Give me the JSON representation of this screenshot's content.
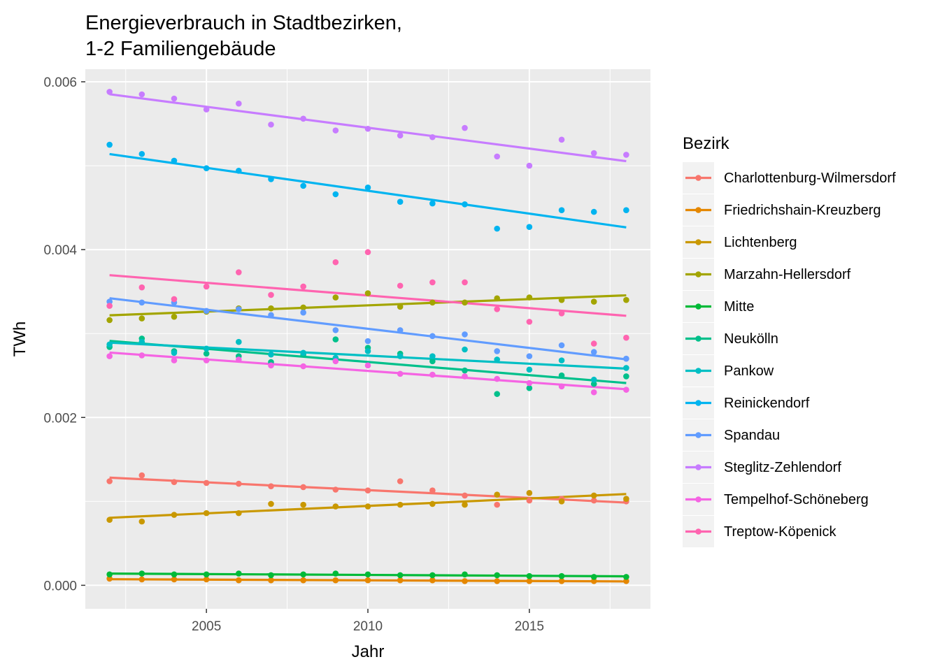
{
  "chart_data": {
    "type": "scatter",
    "title_line1": "Energieverbrauch in Stadtbezirken,",
    "title_line2": "1-2 Familiengebäude",
    "xlabel": "Jahr",
    "ylabel": "TWh",
    "xlim": [
      2001.25,
      2018.75
    ],
    "ylim": [
      -0.00028,
      0.00615
    ],
    "x_ticks": [
      2005,
      2010,
      2015
    ],
    "x_tick_labels": [
      "2005",
      "2010",
      "2015"
    ],
    "y_ticks": [
      0.0,
      0.002,
      0.004,
      0.006
    ],
    "y_tick_labels": [
      "0.000",
      "0.002",
      "0.004",
      "0.006"
    ],
    "grid": true,
    "trend_lines": "linear fit per series",
    "legend_title": "Bezirk",
    "legend_position": "right",
    "x": [
      2002,
      2003,
      2004,
      2005,
      2006,
      2007,
      2008,
      2009,
      2010,
      2011,
      2012,
      2013,
      2014,
      2015,
      2016,
      2017,
      2018
    ],
    "series": [
      {
        "name": "Charlottenburg-Wilmersdorf",
        "color": "#F8766D",
        "values": [
          0.00124,
          0.00131,
          0.00123,
          0.00122,
          0.00121,
          0.00118,
          0.00117,
          0.00114,
          0.00113,
          0.00124,
          0.00113,
          0.00107,
          0.00096,
          0.00101,
          0.00103,
          0.00101,
          0.001
        ]
      },
      {
        "name": "Friedrichshain-Kreuzberg",
        "color": "#E58700",
        "values": [
          8e-05,
          7e-05,
          7e-05,
          7e-05,
          6e-05,
          6e-05,
          6e-05,
          6e-05,
          6e-05,
          6e-05,
          6e-05,
          5e-05,
          5e-05,
          5e-05,
          5e-05,
          5e-05,
          5e-05
        ]
      },
      {
        "name": "Lichtenberg",
        "color": "#C99800",
        "values": [
          0.00078,
          0.00076,
          0.00084,
          0.00086,
          0.00086,
          0.00097,
          0.00096,
          0.00094,
          0.00094,
          0.00096,
          0.00097,
          0.00096,
          0.00108,
          0.0011,
          0.001,
          0.00107,
          0.00103
        ]
      },
      {
        "name": "Marzahn-Hellersdorf",
        "color": "#A3A500",
        "values": [
          0.00316,
          0.00318,
          0.0032,
          0.00326,
          0.0033,
          0.0033,
          0.00331,
          0.00343,
          0.00348,
          0.00332,
          0.00337,
          0.00337,
          0.00342,
          0.00343,
          0.0034,
          0.00338,
          0.0034
        ]
      },
      {
        "name": "Mitte",
        "color": "#00BA38",
        "values": [
          0.00013,
          0.00014,
          0.00013,
          0.00013,
          0.00014,
          0.00012,
          0.00013,
          0.00014,
          0.00013,
          0.00012,
          0.00012,
          0.00013,
          0.00012,
          0.00011,
          0.00011,
          0.0001,
          0.0001
        ]
      },
      {
        "name": "Neukölln",
        "color": "#00C08B",
        "values": [
          0.00284,
          0.00294,
          0.00279,
          0.00276,
          0.00273,
          0.00266,
          0.00275,
          0.00293,
          0.00283,
          0.00276,
          0.00267,
          0.00256,
          0.00228,
          0.00235,
          0.0025,
          0.0024,
          0.00249
        ]
      },
      {
        "name": "Pankow",
        "color": "#00BFC4",
        "values": [
          0.00287,
          0.0029,
          0.00277,
          0.00282,
          0.0029,
          0.00275,
          0.00277,
          0.00271,
          0.00279,
          0.00273,
          0.00273,
          0.00281,
          0.00269,
          0.00257,
          0.00268,
          0.00245,
          0.00259
        ]
      },
      {
        "name": "Reinickendorf",
        "color": "#00B4F0",
        "values": [
          0.00525,
          0.00514,
          0.00506,
          0.00497,
          0.00494,
          0.00484,
          0.00476,
          0.00466,
          0.00474,
          0.00457,
          0.00455,
          0.00454,
          0.00425,
          0.00427,
          0.00447,
          0.00445,
          0.00447
        ]
      },
      {
        "name": "Spandau",
        "color": "#619CFF",
        "values": [
          0.00338,
          0.00337,
          0.00337,
          0.00327,
          0.00329,
          0.00322,
          0.00325,
          0.00304,
          0.00291,
          0.00304,
          0.00297,
          0.00299,
          0.00279,
          0.00273,
          0.00286,
          0.00278,
          0.0027
        ]
      },
      {
        "name": "Steglitz-Zehlendorf",
        "color": "#C77CFF",
        "values": [
          0.00588,
          0.00585,
          0.0058,
          0.00567,
          0.00574,
          0.00549,
          0.00556,
          0.00542,
          0.00544,
          0.00536,
          0.00534,
          0.00545,
          0.00511,
          0.005,
          0.00531,
          0.00515,
          0.00513
        ]
      },
      {
        "name": "Tempelhof-Schöneberg",
        "color": "#F564E3",
        "values": [
          0.00273,
          0.00274,
          0.00268,
          0.00268,
          0.00269,
          0.00262,
          0.00261,
          0.00267,
          0.00262,
          0.00252,
          0.00251,
          0.00249,
          0.00246,
          0.00241,
          0.00237,
          0.0023,
          0.00233
        ]
      },
      {
        "name": "Treptow-Köpenick",
        "color": "#FF64B0",
        "values": [
          0.00333,
          0.00355,
          0.00341,
          0.00356,
          0.00373,
          0.00346,
          0.00356,
          0.00385,
          0.00397,
          0.00357,
          0.00361,
          0.00361,
          0.00329,
          0.00314,
          0.00324,
          0.00288,
          0.00295
        ]
      }
    ]
  }
}
